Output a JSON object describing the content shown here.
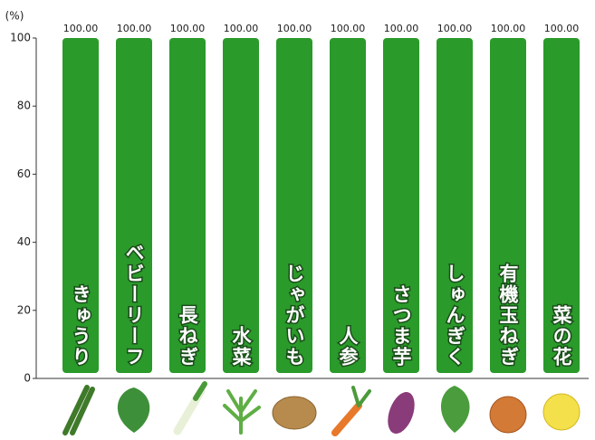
{
  "chart_data": {
    "type": "bar",
    "y_label": "(%)",
    "categories": [
      "きゅうり",
      "ベビーリーフ",
      "長ねぎ",
      "水菜",
      "じゃがいも",
      "人参",
      "さつま芋",
      "しゅんぎく",
      "有機玉ねぎ",
      "菜の花"
    ],
    "values": [
      100,
      100,
      100,
      100,
      100,
      100,
      100,
      100,
      100,
      100
    ],
    "value_labels": [
      "100.00",
      "100.00",
      "100.00",
      "100.00",
      "100.00",
      "100.00",
      "100.00",
      "100.00",
      "100.00",
      "100.00"
    ],
    "color": "#2a9a2a",
    "ylim": [
      0,
      100
    ],
    "yticks": [
      0,
      20,
      40,
      60,
      80,
      100
    ],
    "grid": false
  }
}
